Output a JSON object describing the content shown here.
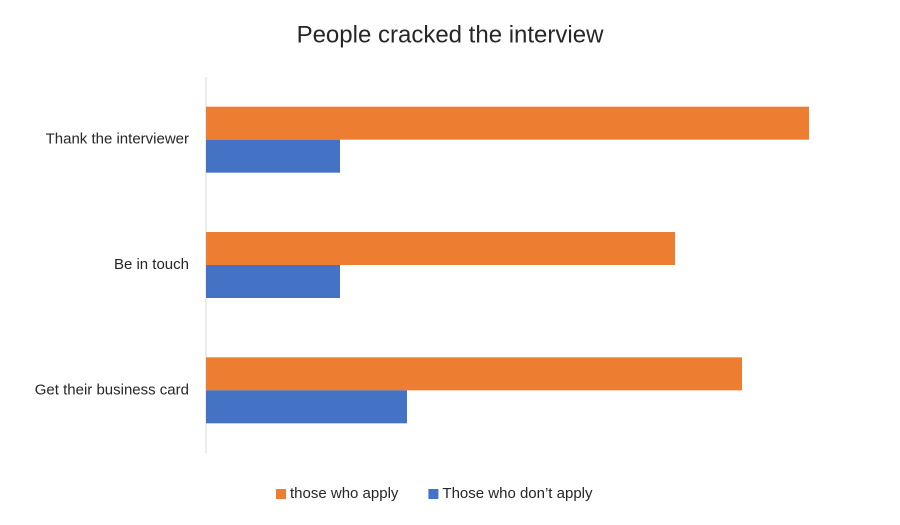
{
  "chart_data": {
    "type": "hbar",
    "title": "People cracked the interview",
    "categories": [
      "Thank the interviewer",
      "Be in touch",
      "Get their business card"
    ],
    "series": [
      {
        "name": "those who apply",
        "color": "#ed7d31",
        "values": [
          9,
          7,
          8
        ]
      },
      {
        "name": "Those who don’t apply",
        "color": "#4472c4",
        "values": [
          2,
          2,
          3
        ]
      }
    ],
    "xlim": [
      0,
      10
    ],
    "legend": "bottom"
  }
}
